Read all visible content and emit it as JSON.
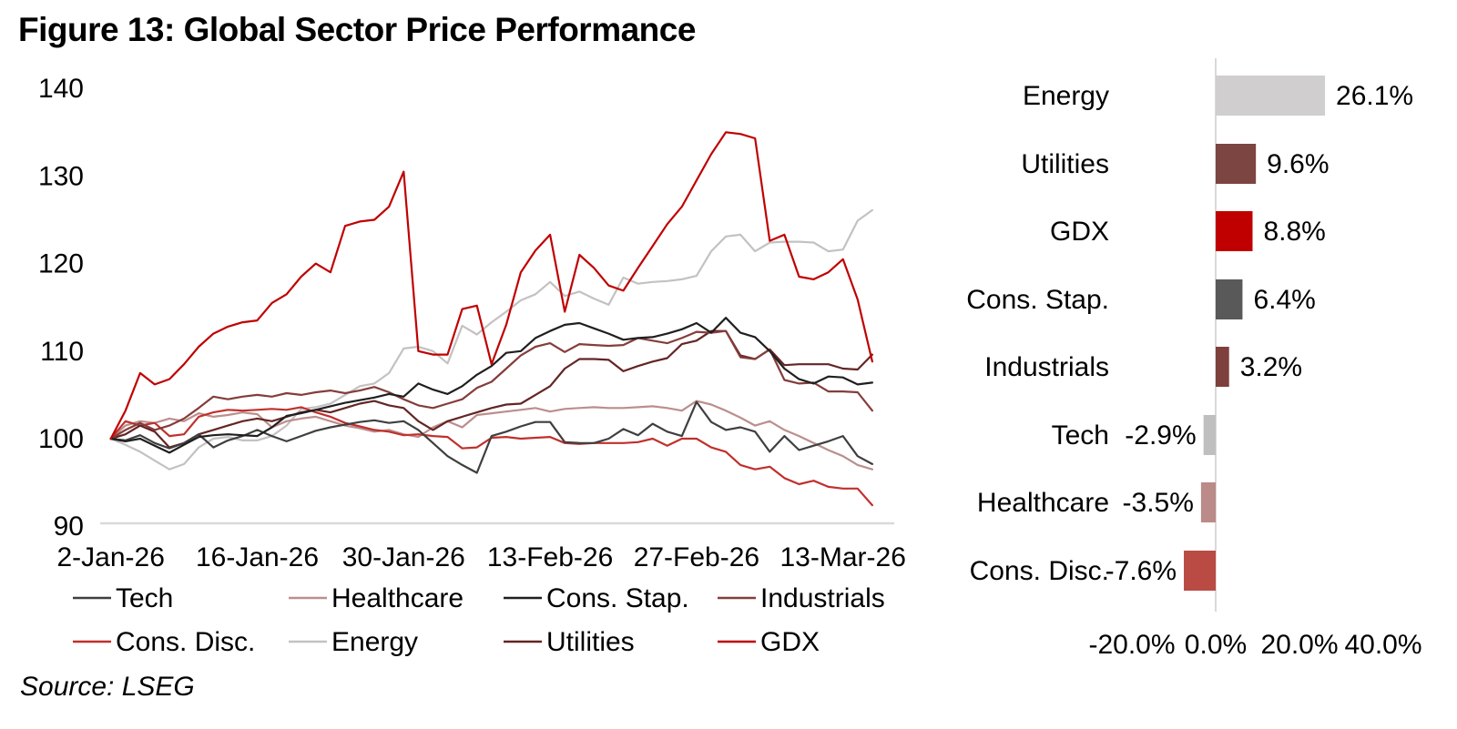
{
  "title": "Figure 13: Global Sector Price Performance",
  "source": "Source: LSEG",
  "colors": {
    "axis_line": "#D9D9D9",
    "text": "#000000",
    "background": "#FFFFFF"
  },
  "legend": {
    "rows": [
      [
        "Tech",
        "Healthcare",
        "Cons. Stap.",
        "Industrials"
      ],
      [
        "Cons. Disc.",
        "Energy",
        "Utilities",
        "GDX"
      ]
    ]
  },
  "chart_data": [
    {
      "type": "line",
      "title": "Global sector price performance indexed to 100 at 2-Jan-26",
      "xlabel": "",
      "ylabel": "",
      "ylim": [
        90,
        140
      ],
      "y_ticks": [
        140,
        130,
        120,
        110,
        100,
        90
      ],
      "grid": false,
      "legend_position": "bottom",
      "x_tick_indices": [
        0,
        10,
        20,
        30,
        40,
        50
      ],
      "x_tick_labels": [
        "2-Jan-26",
        "16-Jan-26",
        "30-Jan-26",
        "13-Feb-26",
        "27-Feb-26",
        "13-Mar-26"
      ],
      "n_points": 53,
      "series": [
        {
          "name": "Energy",
          "color": "#C4C1C1",
          "values": [
            100,
            99.3,
            98.5,
            97.5,
            96.5,
            97.1,
            99,
            100,
            100.2,
            99.8,
            99.8,
            100.3,
            101.5,
            103.4,
            103.6,
            104,
            105,
            106,
            106.3,
            107.5,
            110.3,
            110.5,
            110,
            108.6,
            112.9,
            111.9,
            113.3,
            114.5,
            115.8,
            116.5,
            117.9,
            116.3,
            116.8,
            116,
            115.3,
            118.4,
            117.7,
            117.9,
            118,
            118.2,
            118.6,
            121.4,
            123.1,
            123.3,
            121.4,
            122.4,
            122.5,
            122.5,
            122.4,
            121.4,
            121.6,
            124.9,
            126.1
          ]
        },
        {
          "name": "Healthcare",
          "color": "#BC8E8E",
          "values": [
            100,
            101.5,
            102,
            101.8,
            102.3,
            102,
            102.9,
            102.5,
            102.7,
            103,
            102.8,
            101.3,
            102,
            102.3,
            102.5,
            102,
            101.5,
            101.2,
            100.8,
            101,
            100.5,
            100.2,
            101.3,
            102,
            101.3,
            102.7,
            102.9,
            103.1,
            103.3,
            103.5,
            103.1,
            103.4,
            103.5,
            103.6,
            103.5,
            103.5,
            103.6,
            103.7,
            103.5,
            103.2,
            104.3,
            103.9,
            103.2,
            102.4,
            101.5,
            102,
            101,
            100.3,
            99.5,
            98.7,
            98,
            97,
            96.5
          ]
        },
        {
          "name": "Cons. Disc.",
          "color": "#C0302C",
          "values": [
            100,
            102,
            101.5,
            101.8,
            100.3,
            100.5,
            102.5,
            103,
            103.3,
            103.2,
            103.3,
            103.4,
            103.3,
            103.6,
            103,
            102.5,
            101.8,
            101.4,
            101,
            100.8,
            100.4,
            100.5,
            100.3,
            100.2,
            98.9,
            99,
            100.1,
            100.2,
            100,
            100.1,
            100.2,
            99.5,
            99.4,
            99.5,
            99.5,
            99.5,
            99.6,
            100,
            99.2,
            100,
            100,
            99,
            98.5,
            97,
            96.5,
            96.8,
            95.5,
            94.8,
            95.2,
            94.5,
            94.3,
            94.3,
            92.4
          ]
        },
        {
          "name": "Utilities",
          "color": "#632523",
          "values": [
            100,
            100.5,
            101.5,
            100.8,
            99,
            99.5,
            100.5,
            101,
            101.5,
            102,
            102.3,
            102,
            102.5,
            103,
            103.3,
            103,
            103.5,
            104,
            104.3,
            103.8,
            103.5,
            102,
            101,
            102,
            102.5,
            103,
            103.5,
            103.9,
            104,
            105,
            106,
            108,
            109.1,
            109.1,
            109,
            107.7,
            108.3,
            108.8,
            109.2,
            110.8,
            111.2,
            112.3,
            112.3,
            109.5,
            109.1,
            110.2,
            108.4,
            108.5,
            108.5,
            108.5,
            108,
            107.9,
            109.6
          ]
        },
        {
          "name": "Industrials",
          "color": "#843D3B",
          "values": [
            100,
            101,
            101.8,
            101,
            101.5,
            102.3,
            103.5,
            104.8,
            104.5,
            104.8,
            105,
            104.8,
            105.2,
            105,
            105.3,
            105.5,
            105.2,
            105.5,
            105.9,
            105.3,
            104.5,
            103.8,
            103.5,
            104,
            104.5,
            105.8,
            106.5,
            108,
            109.5,
            110.5,
            110.9,
            109.9,
            110.8,
            110.7,
            110.6,
            110.7,
            111.5,
            111.2,
            110.9,
            111.5,
            112.2,
            112.1,
            112.3,
            109.3,
            109.1,
            110.2,
            106.7,
            106.3,
            106.4,
            105.4,
            105.4,
            105.3,
            103.2
          ]
        },
        {
          "name": "Tech",
          "color": "#3F3F3F",
          "values": [
            100,
            99.8,
            100.4,
            99.5,
            98.9,
            99.5,
            100.5,
            99,
            99.8,
            100.3,
            101,
            100.3,
            99.7,
            100.3,
            100.9,
            101.3,
            101.6,
            101.9,
            102.1,
            101.8,
            102,
            101,
            99.5,
            98,
            97,
            96.1,
            100.3,
            100.8,
            101.4,
            101.9,
            101.9,
            99.6,
            99.5,
            99.5,
            100,
            101.1,
            100.4,
            101.7,
            100.8,
            100.3,
            104.2,
            101.9,
            101,
            101.3,
            100.8,
            98.5,
            100.3,
            98.7,
            99.2,
            99.7,
            100.3,
            98,
            97.1
          ]
        },
        {
          "name": "Cons. Stap.",
          "color": "#1F1F1F",
          "values": [
            100,
            99.7,
            100,
            99.2,
            98.4,
            99.3,
            100.2,
            100.4,
            100.5,
            100.4,
            100.3,
            101.3,
            102.6,
            102.9,
            103.3,
            103.7,
            104.1,
            104.4,
            104.7,
            105.1,
            104.8,
            106.3,
            105.6,
            105.1,
            106,
            107.3,
            108.3,
            109.8,
            110,
            111.5,
            112.3,
            113,
            113.2,
            112.6,
            112,
            111.3,
            111.5,
            111.6,
            112,
            112.5,
            113.2,
            112.1,
            113.8,
            112.1,
            111.6,
            110,
            108,
            106.8,
            106.3,
            107.1,
            107,
            106.2,
            106.4
          ]
        },
        {
          "name": "GDX",
          "color": "#C00000",
          "values": [
            100,
            103.2,
            107.5,
            106.2,
            106.8,
            108.5,
            110.5,
            112,
            112.8,
            113.3,
            113.5,
            115.5,
            116.5,
            118.5,
            120,
            119,
            124.3,
            124.8,
            125,
            126.5,
            130.5,
            110,
            109.6,
            109.6,
            114.8,
            115.2,
            108.5,
            113,
            119,
            121.5,
            123.3,
            114.5,
            121,
            119.5,
            117.5,
            116.9,
            119.5,
            122,
            124.5,
            126.5,
            129.5,
            132.5,
            135,
            134.8,
            134.3,
            122.6,
            123.3,
            118.5,
            118.2,
            119,
            120.5,
            115.9,
            108.8
          ]
        }
      ]
    },
    {
      "type": "bar",
      "orientation": "horizontal",
      "title": "Sector price performance, period return",
      "categories": [
        "Energy",
        "Utilities",
        "GDX",
        "Cons. Stap.",
        "Industrials",
        "Tech",
        "Healthcare",
        "Cons. Disc."
      ],
      "values": [
        26.1,
        9.6,
        8.8,
        6.4,
        3.2,
        -2.9,
        -3.5,
        -7.6
      ],
      "value_labels": [
        "26.1%",
        "9.6%",
        "8.8%",
        "6.4%",
        "3.2%",
        "-2.9%",
        "-3.5%",
        "-7.6%"
      ],
      "bar_colors": [
        "#D0CECE",
        "#7C4541",
        "#C00000",
        "#595959",
        "#7E403C",
        "#BFBFBF",
        "#BA8B88",
        "#BA4A44"
      ],
      "xlim": [
        -20,
        40
      ],
      "x_tick_values": [
        -20,
        0,
        20,
        40
      ],
      "x_tick_labels": [
        "-20.0%",
        "0.0%",
        "20.0%",
        "40.0%"
      ],
      "grid": false
    }
  ]
}
